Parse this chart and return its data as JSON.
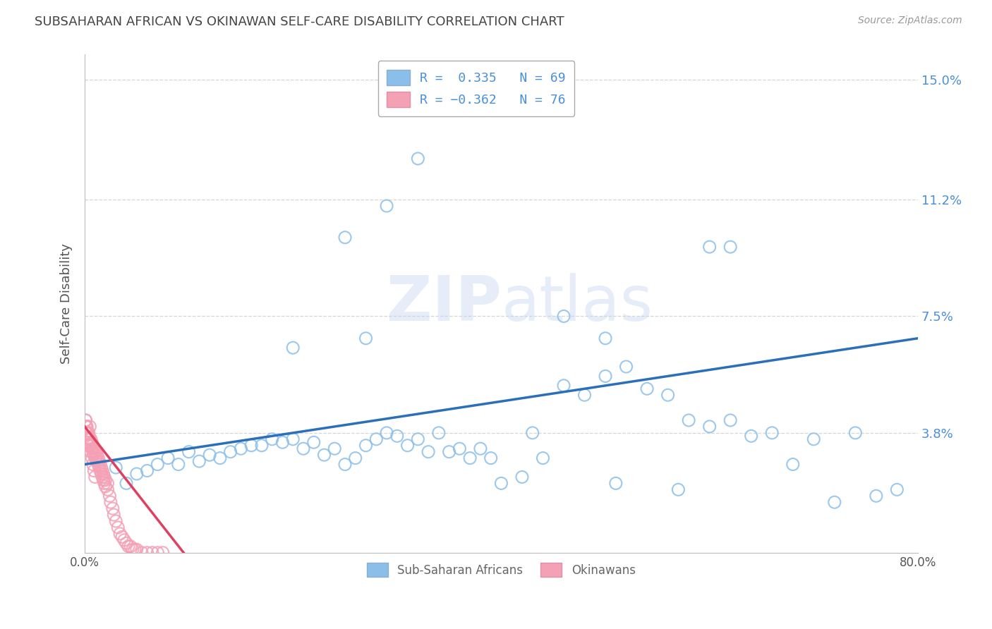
{
  "title": "SUBSAHARAN AFRICAN VS OKINAWAN SELF-CARE DISABILITY CORRELATION CHART",
  "source": "Source: ZipAtlas.com",
  "ylabel": "Self-Care Disability",
  "x_min": 0.0,
  "x_max": 0.8,
  "y_min": 0.0,
  "y_max": 0.158,
  "y_ticks": [
    0.038,
    0.075,
    0.112,
    0.15
  ],
  "y_tick_labels": [
    "3.8%",
    "7.5%",
    "11.2%",
    "15.0%"
  ],
  "x_ticks": [
    0.0,
    0.16,
    0.32,
    0.48,
    0.64,
    0.8
  ],
  "x_tick_labels": [
    "0.0%",
    "",
    "",
    "",
    "",
    "80.0%"
  ],
  "background_color": "#ffffff",
  "plot_bg_color": "#ffffff",
  "grid_color": "#cccccc",
  "title_color": "#444444",
  "blue_dot_color": "#8bbfea",
  "pink_dot_color": "#f4a0b5",
  "blue_line_color": "#2a6fba",
  "pink_line_color": "#e04060",
  "r_blue": 0.335,
  "n_blue": 69,
  "r_pink": -0.362,
  "n_pink": 76,
  "legend_label_blue": "Sub-Saharan Africans",
  "legend_label_pink": "Okinawans",
  "blue_scatter_x": [
    0.03,
    0.04,
    0.05,
    0.06,
    0.07,
    0.08,
    0.09,
    0.1,
    0.11,
    0.12,
    0.13,
    0.14,
    0.15,
    0.16,
    0.17,
    0.18,
    0.19,
    0.2,
    0.21,
    0.22,
    0.23,
    0.24,
    0.25,
    0.26,
    0.27,
    0.28,
    0.29,
    0.3,
    0.31,
    0.32,
    0.33,
    0.34,
    0.35,
    0.36,
    0.37,
    0.38,
    0.39,
    0.4,
    0.42,
    0.43,
    0.44,
    0.46,
    0.48,
    0.5,
    0.51,
    0.52,
    0.54,
    0.56,
    0.57,
    0.58,
    0.6,
    0.62,
    0.64,
    0.66,
    0.68,
    0.7,
    0.72,
    0.74,
    0.76,
    0.78,
    0.25,
    0.32,
    0.6,
    0.27,
    0.2,
    0.29,
    0.46,
    0.5,
    0.62
  ],
  "blue_scatter_y": [
    0.027,
    0.022,
    0.025,
    0.026,
    0.028,
    0.03,
    0.028,
    0.032,
    0.029,
    0.031,
    0.03,
    0.032,
    0.033,
    0.034,
    0.034,
    0.036,
    0.035,
    0.036,
    0.033,
    0.035,
    0.031,
    0.033,
    0.028,
    0.03,
    0.034,
    0.036,
    0.038,
    0.037,
    0.034,
    0.036,
    0.032,
    0.038,
    0.032,
    0.033,
    0.03,
    0.033,
    0.03,
    0.022,
    0.024,
    0.038,
    0.03,
    0.053,
    0.05,
    0.056,
    0.022,
    0.059,
    0.052,
    0.05,
    0.02,
    0.042,
    0.04,
    0.042,
    0.037,
    0.038,
    0.028,
    0.036,
    0.016,
    0.038,
    0.018,
    0.02,
    0.1,
    0.125,
    0.097,
    0.068,
    0.065,
    0.11,
    0.075,
    0.068,
    0.097
  ],
  "pink_scatter_x": [
    0.001,
    0.001,
    0.001,
    0.002,
    0.002,
    0.002,
    0.003,
    0.003,
    0.003,
    0.004,
    0.004,
    0.004,
    0.005,
    0.005,
    0.006,
    0.006,
    0.007,
    0.007,
    0.008,
    0.008,
    0.009,
    0.009,
    0.01,
    0.01,
    0.011,
    0.011,
    0.012,
    0.012,
    0.013,
    0.013,
    0.014,
    0.014,
    0.015,
    0.015,
    0.016,
    0.016,
    0.017,
    0.017,
    0.018,
    0.018,
    0.019,
    0.019,
    0.02,
    0.02,
    0.022,
    0.022,
    0.024,
    0.025,
    0.027,
    0.028,
    0.03,
    0.032,
    0.034,
    0.036,
    0.038,
    0.04,
    0.042,
    0.044,
    0.046,
    0.048,
    0.05,
    0.055,
    0.06,
    0.065,
    0.07,
    0.075,
    0.001,
    0.002,
    0.003,
    0.004,
    0.005,
    0.006,
    0.007,
    0.008,
    0.009,
    0.01
  ],
  "pink_scatter_y": [
    0.04,
    0.038,
    0.042,
    0.038,
    0.04,
    0.035,
    0.036,
    0.038,
    0.034,
    0.036,
    0.038,
    0.035,
    0.036,
    0.04,
    0.034,
    0.036,
    0.033,
    0.035,
    0.032,
    0.034,
    0.031,
    0.033,
    0.03,
    0.032,
    0.03,
    0.032,
    0.029,
    0.031,
    0.028,
    0.03,
    0.027,
    0.029,
    0.026,
    0.028,
    0.025,
    0.027,
    0.024,
    0.026,
    0.023,
    0.025,
    0.022,
    0.024,
    0.021,
    0.023,
    0.02,
    0.022,
    0.018,
    0.016,
    0.014,
    0.012,
    0.01,
    0.008,
    0.006,
    0.005,
    0.004,
    0.003,
    0.002,
    0.002,
    0.001,
    0.001,
    0.001,
    0.0,
    0.0,
    0.0,
    0.0,
    0.0,
    0.042,
    0.04,
    0.038,
    0.036,
    0.034,
    0.032,
    0.03,
    0.028,
    0.026,
    0.024
  ],
  "blue_trend_x": [
    0.0,
    0.8
  ],
  "blue_trend_y": [
    0.028,
    0.068
  ],
  "pink_trend_x": [
    0.0,
    0.095
  ],
  "pink_trend_y": [
    0.04,
    0.0
  ]
}
